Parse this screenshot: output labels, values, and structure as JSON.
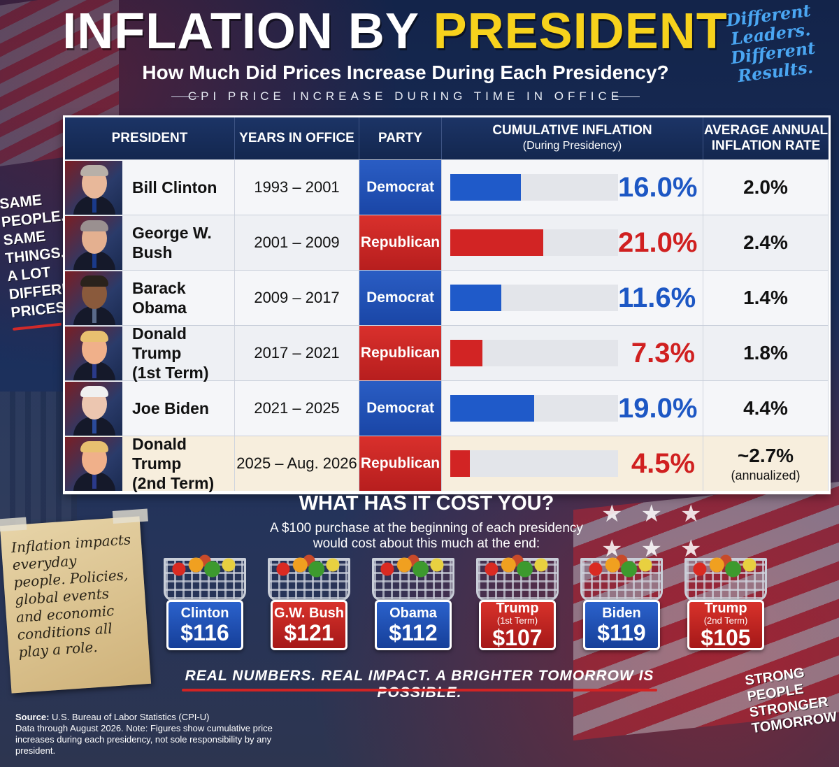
{
  "header": {
    "title_part1": "INFLATION BY ",
    "title_part2": "PRESIDENT",
    "subtitle": "How Much Did Prices Increase During Each Presidency?",
    "tagline": "CPI PRICE INCREASE DURING TIME IN OFFICE",
    "corner_note": "Different Leaders. Different Results."
  },
  "side_note": [
    "SAME",
    "PEOPLE.",
    "SAME",
    "THINGS.",
    "A LOT",
    "DIFFERENT",
    "PRICES."
  ],
  "chart_data": {
    "type": "table",
    "columns": {
      "president": "PRESIDENT",
      "years": "YEARS IN OFFICE",
      "party": "PARTY",
      "cumulative": "CUMULATIVE INFLATION",
      "cumulative_sub": "(During Presidency)",
      "average_line1": "AVERAGE ANNUAL",
      "average_line2": "INFLATION RATE"
    },
    "rows": [
      {
        "name_line1": "Bill Clinton",
        "name_line2": "",
        "years": "1993 – 2001",
        "party": "Democrat",
        "cumulative": 16.0,
        "cumulative_label": "16.0%",
        "average": "2.0%",
        "average_sub": ""
      },
      {
        "name_line1": "George W. Bush",
        "name_line2": "",
        "years": "2001 – 2009",
        "party": "Republican",
        "cumulative": 21.0,
        "cumulative_label": "21.0%",
        "average": "2.4%",
        "average_sub": ""
      },
      {
        "name_line1": "Barack Obama",
        "name_line2": "",
        "years": "2009 – 2017",
        "party": "Democrat",
        "cumulative": 11.6,
        "cumulative_label": "11.6%",
        "average": "1.4%",
        "average_sub": ""
      },
      {
        "name_line1": "Donald Trump",
        "name_line2": "(1st Term)",
        "years": "2017 – 2021",
        "party": "Republican",
        "cumulative": 7.3,
        "cumulative_label": "7.3%",
        "average": "1.8%",
        "average_sub": ""
      },
      {
        "name_line1": "Joe Biden",
        "name_line2": "",
        "years": "2021 – 2025",
        "party": "Democrat",
        "cumulative": 19.0,
        "cumulative_label": "19.0%",
        "average": "4.4%",
        "average_sub": ""
      },
      {
        "name_line1": "Donald Trump",
        "name_line2": "(2nd Term)",
        "years": "2025 – Aug. 2026",
        "party": "Republican",
        "cumulative": 4.5,
        "cumulative_label": "4.5%",
        "average": "~2.7%",
        "average_sub": "(annualized)"
      }
    ],
    "bar_max": 38
  },
  "cost": {
    "title": "WHAT HAS IT COST YOU?",
    "desc_line1": "A $100 purchase at the beginning of each presidency",
    "desc_line2": "would cost about this much at the end:",
    "items": [
      {
        "name": "Clinton",
        "term": "",
        "value": "$116",
        "party": "Democrat"
      },
      {
        "name": "G.W. Bush",
        "term": "",
        "value": "$121",
        "party": "Republican"
      },
      {
        "name": "Obama",
        "term": "",
        "value": "$112",
        "party": "Democrat"
      },
      {
        "name": "Trump",
        "term": "(1st Term)",
        "value": "$107",
        "party": "Republican"
      },
      {
        "name": "Biden",
        "term": "",
        "value": "$119",
        "party": "Democrat"
      },
      {
        "name": "Trump",
        "term": "(2nd Term)",
        "value": "$105",
        "party": "Republican"
      }
    ]
  },
  "paper_note": "Inflation impacts everyday people. Policies, global events and economic conditions all play a role.",
  "slogan": "REAL NUMBERS. REAL IMPACT. A BRIGHTER TOMORROW IS POSSIBLE.",
  "strong_note": [
    "STRONG",
    "PEOPLE",
    "STRONGER",
    "TOMORROW"
  ],
  "source": {
    "label": "Source:",
    "text": "U.S. Bureau of Labor Statistics (CPI-U)",
    "note": "Data through August 2026. Note: Figures show cumulative price increases during each presidency, not sole responsibility by any president."
  },
  "colors": {
    "democrat": "#1f5ac9",
    "republican": "#d22424",
    "title_highlight": "#f7d21c"
  }
}
